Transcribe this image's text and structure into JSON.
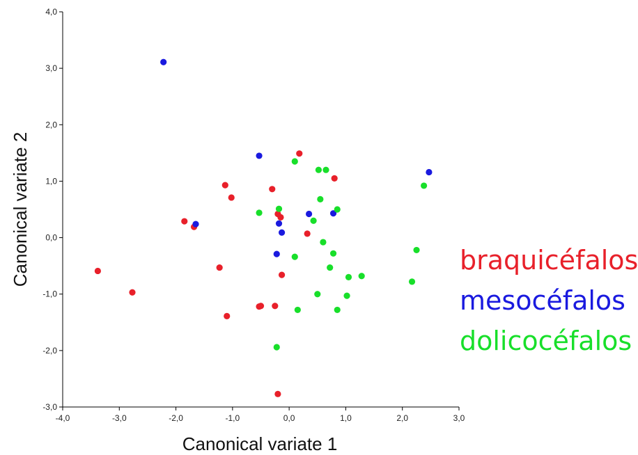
{
  "chart_data": {
    "type": "scatter",
    "title": "",
    "xlabel": "Canonical variate 1",
    "ylabel": "Canonical variate 2",
    "xlim": [
      -4.0,
      3.0
    ],
    "ylim": [
      -3.0,
      4.0
    ],
    "x_ticks": [
      "-4,0",
      "-3,0",
      "-2,0",
      "-1,0",
      "0,0",
      "1,0",
      "2,0",
      "3,0"
    ],
    "y_ticks": [
      "-3,0",
      "-2,0",
      "-1,0",
      "0,0",
      "1,0",
      "2,0",
      "3,0",
      "4,0"
    ],
    "grid": false,
    "legend_position": "right",
    "series": [
      {
        "name": "braquicéfalos",
        "color": "#e8202a",
        "points": [
          [
            -3.38,
            -0.59
          ],
          [
            -2.77,
            -0.97
          ],
          [
            -1.85,
            0.29
          ],
          [
            -1.68,
            0.19
          ],
          [
            -1.23,
            -0.53
          ],
          [
            -1.13,
            0.93
          ],
          [
            -1.1,
            -1.39
          ],
          [
            -1.02,
            0.71
          ],
          [
            -0.53,
            -1.22
          ],
          [
            -0.5,
            -1.21
          ],
          [
            -0.3,
            0.86
          ],
          [
            -0.25,
            -1.21
          ],
          [
            -0.2,
            0.42
          ],
          [
            -0.15,
            0.36
          ],
          [
            -0.13,
            -0.66
          ],
          [
            -0.2,
            -2.77
          ],
          [
            0.18,
            1.49
          ],
          [
            0.32,
            0.07
          ],
          [
            0.8,
            1.05
          ]
        ]
      },
      {
        "name": "mesocéfalos",
        "color": "#1a1adf",
        "points": [
          [
            -2.22,
            3.11
          ],
          [
            -1.65,
            0.24
          ],
          [
            -0.53,
            1.45
          ],
          [
            -0.22,
            -0.29
          ],
          [
            -0.18,
            0.25
          ],
          [
            -0.13,
            0.09
          ],
          [
            0.35,
            0.42
          ],
          [
            0.78,
            0.43
          ],
          [
            2.47,
            1.16
          ]
        ]
      },
      {
        "name": "dolicocéfalos",
        "color": "#18df2a",
        "points": [
          [
            -0.53,
            0.44
          ],
          [
            -0.18,
            0.51
          ],
          [
            -0.22,
            -1.94
          ],
          [
            0.1,
            1.35
          ],
          [
            0.1,
            -0.34
          ],
          [
            0.15,
            -1.28
          ],
          [
            0.43,
            0.3
          ],
          [
            0.5,
            -1.0
          ],
          [
            0.52,
            1.2
          ],
          [
            0.55,
            0.68
          ],
          [
            0.6,
            -0.08
          ],
          [
            0.65,
            1.2
          ],
          [
            0.72,
            -0.53
          ],
          [
            0.78,
            -0.28
          ],
          [
            0.85,
            0.5
          ],
          [
            0.85,
            -1.28
          ],
          [
            1.02,
            -1.03
          ],
          [
            1.05,
            -0.7
          ],
          [
            1.28,
            -0.68
          ],
          [
            2.17,
            -0.78
          ],
          [
            2.25,
            -0.22
          ],
          [
            2.38,
            0.92
          ]
        ]
      }
    ]
  }
}
